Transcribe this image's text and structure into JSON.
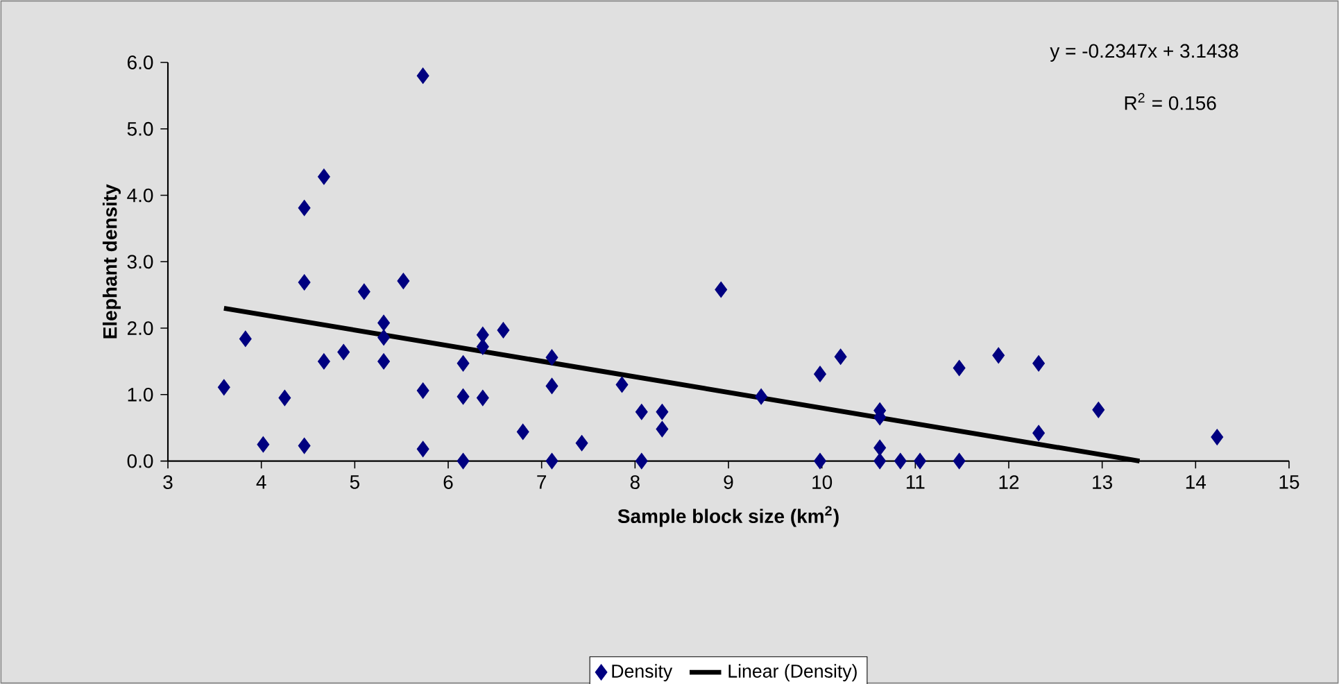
{
  "chart_data": {
    "type": "scatter",
    "xlabel": "Sample block size (km$^{2}$)",
    "ylabel": "Elephant density",
    "annotations": [
      "y = -0.2347x + 3.1438",
      "R$^{2}$ = 0.156"
    ],
    "xlim": [
      3,
      15
    ],
    "xticks": [
      3,
      4,
      5,
      6,
      7,
      8,
      9,
      10,
      11,
      12,
      13,
      14,
      15
    ],
    "ylim": [
      0,
      6
    ],
    "yticks": [
      {
        "value": 0,
        "label": "0.0"
      },
      {
        "value": 1,
        "label": "1.0"
      },
      {
        "value": 2,
        "label": "2.0"
      },
      {
        "value": 3,
        "label": "3.0"
      },
      {
        "value": 4,
        "label": "4.0"
      },
      {
        "value": 5,
        "label": "5.0"
      },
      {
        "value": 6,
        "label": "6.0"
      }
    ],
    "legend": "bottom",
    "series": [
      {
        "name": "Density",
        "marker": "diamond",
        "color": "#000080",
        "x": [
          3.6,
          3.83,
          4.02,
          4.25,
          4.46,
          4.46,
          4.46,
          4.67,
          4.67,
          4.88,
          5.1,
          5.31,
          5.31,
          5.31,
          5.52,
          5.73,
          5.73,
          5.73,
          6.16,
          6.16,
          6.16,
          6.37,
          6.37,
          6.37,
          6.59,
          6.8,
          7.11,
          7.11,
          7.11,
          7.43,
          7.86,
          8.07,
          8.07,
          8.29,
          8.29,
          8.92,
          9.35,
          9.98,
          9.98,
          10.2,
          10.62,
          10.62,
          10.62,
          10.62,
          10.84,
          11.05,
          11.47,
          11.47,
          11.89,
          12.32,
          12.32,
          12.96,
          14.23
        ],
        "values": [
          1.11,
          1.84,
          0.25,
          0.95,
          3.81,
          2.69,
          0.23,
          4.28,
          1.5,
          1.64,
          2.55,
          2.08,
          1.86,
          1.5,
          2.71,
          5.8,
          1.06,
          0.18,
          1.47,
          0.97,
          0.0,
          1.9,
          1.72,
          0.95,
          1.97,
          0.44,
          1.56,
          1.13,
          0.0,
          0.27,
          1.15,
          0.74,
          0.0,
          0.74,
          0.48,
          2.58,
          0.97,
          1.31,
          0.0,
          1.57,
          0.76,
          0.66,
          0.2,
          0.0,
          0.0,
          0.0,
          0.0,
          1.4,
          1.59,
          1.47,
          0.42,
          0.77,
          0.36
        ]
      },
      {
        "name": "Linear (Density)",
        "type": "line",
        "line_style": "solid",
        "color": "#000000",
        "x": [
          3.6,
          13.4
        ],
        "values": [
          2.3,
          0.0
        ]
      }
    ]
  }
}
